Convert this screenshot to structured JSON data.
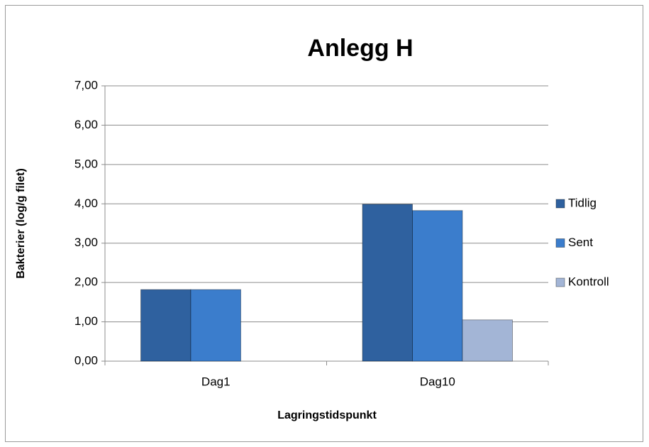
{
  "chart_data": {
    "type": "bar",
    "title": "Anlegg H",
    "x_label": "Lagringstidspunkt",
    "y_label": "Bakterier (log/g filet)",
    "categories": [
      "Dag1",
      "Dag10"
    ],
    "series": [
      {
        "name": "Tidlig",
        "color": "#2f619f",
        "values": [
          1.82,
          3.99
        ]
      },
      {
        "name": "Sent",
        "color": "#3b7dcc",
        "values": [
          1.82,
          3.83
        ]
      },
      {
        "name": "Kontroll",
        "color": "#a3b5d6",
        "values": [
          null,
          1.05
        ]
      }
    ],
    "ylim": [
      0,
      7
    ],
    "yticks": [
      {
        "value": 0,
        "label": "0,00"
      },
      {
        "value": 1,
        "label": "1,00"
      },
      {
        "value": 2,
        "label": "2,00"
      },
      {
        "value": 3,
        "label": "3,00"
      },
      {
        "value": 4,
        "label": "4,00"
      },
      {
        "value": 5,
        "label": "5,00"
      },
      {
        "value": 6,
        "label": "6,00"
      },
      {
        "value": 7,
        "label": "7,00"
      }
    ],
    "grid": true,
    "legend": "right"
  }
}
